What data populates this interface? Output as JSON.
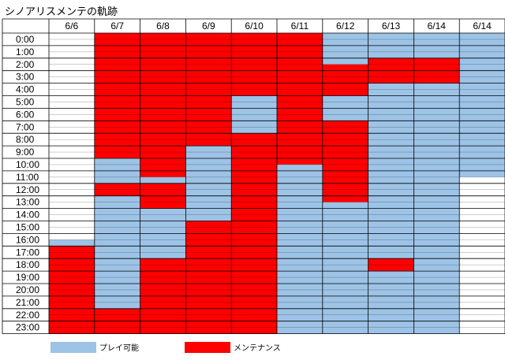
{
  "title": "シノアリスメンテの軌跡",
  "chart_data": {
    "type": "heatmap",
    "title": "シノアリスメンテの軌跡",
    "columns": [
      "6/6",
      "6/7",
      "6/8",
      "6/9",
      "6/10",
      "6/11",
      "6/12",
      "6/13",
      "6/14",
      "6/14"
    ],
    "rows": [
      "0:00",
      "1:00",
      "2:00",
      "3:00",
      "4:00",
      "5:00",
      "6:00",
      "7:00",
      "8:00",
      "9:00",
      "10:00",
      "11:00",
      "12:00",
      "13:00",
      "14:00",
      "15:00",
      "16:00",
      "17:00",
      "18:00",
      "19:00",
      "20:00",
      "21:00",
      "22:00",
      "23:00"
    ],
    "status_colors": {
      "available": "#9dc3e6",
      "maintenance": "#ff0000",
      "none": "#ffffff"
    },
    "legend": [
      {
        "key": "available",
        "label": "プレイ可能"
      },
      {
        "key": "maintenance",
        "label": "メンテナンス"
      }
    ],
    "segments": [
      [
        {
          "from": 16.5,
          "to": 17,
          "status": "available"
        },
        {
          "from": 17,
          "to": 24,
          "status": "maintenance"
        }
      ],
      [
        {
          "from": 0,
          "to": 10,
          "status": "maintenance"
        },
        {
          "from": 10,
          "to": 12,
          "status": "available"
        },
        {
          "from": 12,
          "to": 13,
          "status": "maintenance"
        },
        {
          "from": 13,
          "to": 22,
          "status": "available"
        },
        {
          "from": 22,
          "to": 24,
          "status": "maintenance"
        }
      ],
      [
        {
          "from": 0,
          "to": 11.5,
          "status": "maintenance"
        },
        {
          "from": 11.5,
          "to": 12,
          "status": "available"
        },
        {
          "from": 12,
          "to": 14,
          "status": "maintenance"
        },
        {
          "from": 14,
          "to": 18,
          "status": "available"
        },
        {
          "from": 18,
          "to": 24,
          "status": "maintenance"
        }
      ],
      [
        {
          "from": 0,
          "to": 9,
          "status": "maintenance"
        },
        {
          "from": 9,
          "to": 15,
          "status": "available"
        },
        {
          "from": 15,
          "to": 24,
          "status": "maintenance"
        }
      ],
      [
        {
          "from": 0,
          "to": 5,
          "status": "maintenance"
        },
        {
          "from": 5,
          "to": 8,
          "status": "available"
        },
        {
          "from": 8,
          "to": 24,
          "status": "maintenance"
        }
      ],
      [
        {
          "from": 0,
          "to": 10.5,
          "status": "maintenance"
        },
        {
          "from": 10.5,
          "to": 24,
          "status": "available"
        }
      ],
      [
        {
          "from": 0,
          "to": 2.5,
          "status": "available"
        },
        {
          "from": 2.5,
          "to": 5,
          "status": "maintenance"
        },
        {
          "from": 5,
          "to": 7,
          "status": "available"
        },
        {
          "from": 7,
          "to": 13.5,
          "status": "maintenance"
        },
        {
          "from": 13.5,
          "to": 24,
          "status": "available"
        }
      ],
      [
        {
          "from": 0,
          "to": 2,
          "status": "available"
        },
        {
          "from": 2,
          "to": 4,
          "status": "maintenance"
        },
        {
          "from": 4,
          "to": 18,
          "status": "available"
        },
        {
          "from": 18,
          "to": 19,
          "status": "maintenance"
        },
        {
          "from": 19,
          "to": 24,
          "status": "available"
        }
      ],
      [
        {
          "from": 0,
          "to": 2,
          "status": "available"
        },
        {
          "from": 2,
          "to": 4,
          "status": "maintenance"
        },
        {
          "from": 4,
          "to": 24,
          "status": "available"
        }
      ],
      [
        {
          "from": 0,
          "to": 11.5,
          "status": "available"
        }
      ]
    ]
  }
}
